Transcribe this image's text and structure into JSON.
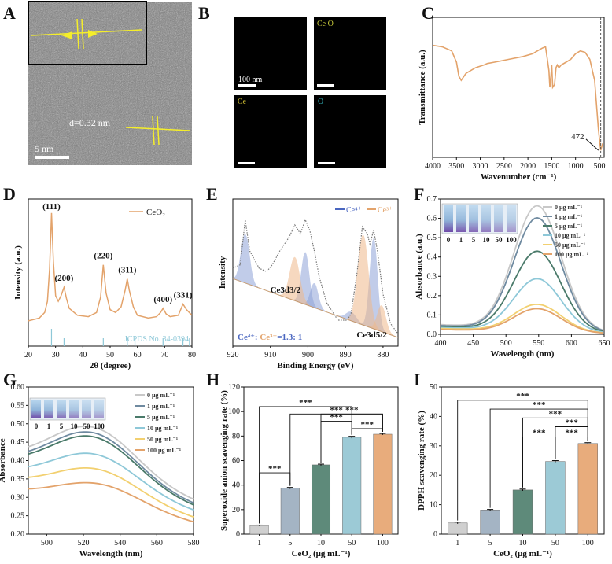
{
  "panels": {
    "A": {
      "label": "A",
      "d_spacing": "d=0.32 nm",
      "scale": "5 nm"
    },
    "B": {
      "label": "B",
      "scale": "100 nm",
      "tiles": [
        {
          "label": "",
          "color": "#dddddd"
        },
        {
          "label": "Ce O",
          "color": "#c6c83a"
        },
        {
          "label": "Ce",
          "color": "#c8b832"
        },
        {
          "label": "O",
          "color": "#39c6cf"
        }
      ]
    },
    "C": {
      "label": "C"
    },
    "D": {
      "label": "D"
    },
    "E": {
      "label": "E"
    },
    "F": {
      "label": "F"
    },
    "G": {
      "label": "G"
    },
    "H": {
      "label": "H"
    },
    "I": {
      "label": "I"
    }
  },
  "chart_data": [
    {
      "id": "C",
      "type": "line",
      "title": "",
      "xlabel": "Wavenumber (cm⁻¹)",
      "ylabel": "Transmittance (a.u.)",
      "xlim": [
        4000,
        400
      ],
      "xticks": [
        4000,
        3500,
        3000,
        2500,
        2000,
        1500,
        1000,
        500
      ],
      "annotation": "472",
      "x": [
        4000,
        3800,
        3600,
        3500,
        3450,
        3400,
        3300,
        3100,
        2920,
        2850,
        2700,
        2400,
        2100,
        1900,
        1800,
        1700,
        1630,
        1600,
        1560,
        1540,
        1520,
        1500,
        1480,
        1440,
        1410,
        1385,
        1350,
        1300,
        1200,
        1100,
        1050,
        1000,
        900,
        800,
        700,
        600,
        520,
        472,
        430
      ],
      "y": [
        0.8,
        0.79,
        0.76,
        0.68,
        0.58,
        0.55,
        0.6,
        0.64,
        0.66,
        0.67,
        0.68,
        0.7,
        0.72,
        0.74,
        0.76,
        0.78,
        0.79,
        0.72,
        0.62,
        0.5,
        0.57,
        0.66,
        0.5,
        0.52,
        0.64,
        0.66,
        0.64,
        0.66,
        0.68,
        0.7,
        0.72,
        0.74,
        0.76,
        0.75,
        0.7,
        0.55,
        0.2,
        0.05,
        0.1
      ],
      "color": "#e3a36b"
    },
    {
      "id": "D",
      "type": "line",
      "title": "",
      "xlabel": "2θ (degree)",
      "ylabel": "Intensity (a.u.)",
      "xlim": [
        20,
        80
      ],
      "xticks": [
        20,
        30,
        40,
        50,
        60,
        70,
        80
      ],
      "legend": "CeO₂",
      "reference": "JCPDS No. 34-0394",
      "peak_labels": [
        {
          "x": 28.5,
          "text": "(111)"
        },
        {
          "x": 33.1,
          "text": "(200)"
        },
        {
          "x": 47.5,
          "text": "(220)"
        },
        {
          "x": 56.3,
          "text": "(311)"
        },
        {
          "x": 69.4,
          "text": "(400)"
        },
        {
          "x": 76.7,
          "text": "(331)"
        }
      ],
      "reference_lines": [
        28.5,
        33.1,
        47.5,
        56.3,
        59.1,
        69.4,
        76.7,
        79.1
      ],
      "x": [
        20,
        22,
        24,
        26,
        27,
        27.8,
        28.5,
        29.2,
        30,
        31,
        32,
        33.1,
        34,
        35,
        38,
        42,
        45,
        46.5,
        47.5,
        48.5,
        50,
        52,
        54,
        55.5,
        56.3,
        57,
        58.5,
        60,
        64,
        67,
        68.5,
        69.4,
        70.5,
        72,
        75,
        76.7,
        78,
        80
      ],
      "y": [
        0.18,
        0.19,
        0.2,
        0.24,
        0.32,
        0.55,
        0.95,
        0.6,
        0.36,
        0.32,
        0.36,
        0.42,
        0.34,
        0.27,
        0.22,
        0.21,
        0.24,
        0.35,
        0.58,
        0.38,
        0.26,
        0.24,
        0.28,
        0.4,
        0.48,
        0.4,
        0.28,
        0.22,
        0.2,
        0.21,
        0.24,
        0.27,
        0.23,
        0.21,
        0.22,
        0.3,
        0.26,
        0.22
      ],
      "color": "#e3a36b"
    },
    {
      "id": "E",
      "type": "line",
      "title": "",
      "xlabel": "Binding Energy (eV)",
      "ylabel": "Intensity",
      "xlim": [
        920,
        876
      ],
      "xticks": [
        920,
        910,
        900,
        890,
        880
      ],
      "legend": [
        "Ce⁴⁺",
        "Ce³⁺"
      ],
      "peak_labels": [
        "Ce3d3/2",
        "Ce3d5/2"
      ],
      "ratio_text": [
        "Ce⁴⁺: ",
        "Ce³⁺",
        "=1.3: 1"
      ],
      "x": [
        920,
        918,
        916.7,
        915.5,
        913,
        911,
        909.5,
        907.5,
        905,
        903.5,
        902,
        900.7,
        899.5,
        898.3,
        897,
        895,
        892,
        889.5,
        888.5,
        887,
        885.5,
        884.2,
        883.5,
        882.5,
        881.5,
        880,
        878,
        876
      ],
      "y": [
        0.6,
        0.62,
        0.88,
        0.7,
        0.6,
        0.58,
        0.62,
        0.7,
        0.78,
        0.85,
        0.8,
        0.88,
        0.82,
        0.7,
        0.55,
        0.4,
        0.3,
        0.3,
        0.34,
        0.56,
        0.84,
        0.8,
        0.74,
        0.82,
        0.7,
        0.45,
        0.28,
        0.22
      ],
      "color": "#777777"
    },
    {
      "id": "F",
      "type": "line",
      "title": "",
      "xlabel": "Wavelength (nm)",
      "ylabel": "Absorbance (a.u.)",
      "xlim": [
        400,
        650
      ],
      "ylim": [
        0,
        0.7
      ],
      "xticks": [
        400,
        450,
        500,
        550,
        600,
        650
      ],
      "yticks": [
        0.0,
        0.1,
        0.2,
        0.3,
        0.4,
        0.5,
        0.6,
        0.7
      ],
      "inset_labels": [
        "0",
        "1",
        "5",
        "10",
        "50",
        "100"
      ],
      "series": [
        {
          "name": "0 μg mL⁻¹",
          "peak": 0.64,
          "base": 0.05,
          "color": "#c8c8c8"
        },
        {
          "name": "1 μg mL⁻¹",
          "peak": 0.58,
          "base": 0.045,
          "color": "#6f8aa0"
        },
        {
          "name": "5 μg mL⁻¹",
          "peak": 0.41,
          "base": 0.04,
          "color": "#4a7a6a"
        },
        {
          "name": "10 μg mL⁻¹",
          "peak": 0.27,
          "base": 0.035,
          "color": "#8ec8d8"
        },
        {
          "name": "50 μg mL⁻¹",
          "peak": 0.14,
          "base": 0.03,
          "color": "#f2d070"
        },
        {
          "name": "100 μg mL⁻¹",
          "peak": 0.12,
          "base": 0.025,
          "color": "#e3a36b"
        }
      ]
    },
    {
      "id": "G",
      "type": "line",
      "title": "",
      "xlabel": "Wavelength (nm)",
      "ylabel": "Absorbance",
      "xlim": [
        490,
        580
      ],
      "ylim": [
        0.2,
        0.6
      ],
      "xticks": [
        500,
        520,
        540,
        560,
        580
      ],
      "yticks": [
        0.2,
        0.25,
        0.3,
        0.35,
        0.4,
        0.45,
        0.5,
        0.55,
        0.6
      ],
      "inset_labels": [
        "0",
        "1",
        "5",
        "10",
        "50",
        "100"
      ],
      "series": [
        {
          "name": "0 μg mL⁻¹",
          "peak": 0.493,
          "end": 0.285,
          "start": 0.395,
          "color": "#c8c8c8"
        },
        {
          "name": "1 μg mL⁻¹",
          "peak": 0.478,
          "end": 0.275,
          "start": 0.385,
          "color": "#6f8aa0"
        },
        {
          "name": "5 μg mL⁻¹",
          "peak": 0.467,
          "end": 0.27,
          "start": 0.38,
          "color": "#4a7a6a"
        },
        {
          "name": "10 μg mL⁻¹",
          "peak": 0.42,
          "end": 0.258,
          "start": 0.355,
          "color": "#8ec8d8"
        },
        {
          "name": "50 μg mL⁻¹",
          "peak": 0.38,
          "end": 0.24,
          "start": 0.335,
          "color": "#f2d070"
        },
        {
          "name": "100 μg mL⁻¹",
          "peak": 0.34,
          "end": 0.228,
          "start": 0.31,
          "color": "#e3a36b"
        }
      ]
    },
    {
      "id": "H",
      "type": "bar",
      "title": "",
      "xlabel": "CeO₂ (μg mL⁻¹)",
      "ylabel": "Superoxide anion scavenging rate (%)",
      "categories": [
        "1",
        "5",
        "10",
        "50",
        "100"
      ],
      "values": [
        7,
        37.5,
        56.5,
        79,
        81.5
      ],
      "errors": [
        0.4,
        0.6,
        0.6,
        0.8,
        0.6
      ],
      "ylim": [
        0,
        120
      ],
      "yticks": [
        0,
        20,
        40,
        60,
        80,
        100,
        120
      ],
      "colors": [
        "#d0d0d0",
        "#a4b4c4",
        "#5e8a7a",
        "#9ccad6",
        "#e8ac7c"
      ],
      "significance": [
        {
          "from": 0,
          "to": 1,
          "label": "***",
          "level": 50
        },
        {
          "from": 0,
          "to": 3,
          "label": "***",
          "level": 104
        },
        {
          "from": 1,
          "to": 4,
          "label": "***",
          "level": 98
        },
        {
          "from": 2,
          "to": 3,
          "label": "***",
          "level": 92
        },
        {
          "from": 2,
          "to": 4,
          "label": "***",
          "level": 98
        },
        {
          "from": 3,
          "to": 4,
          "label": "***",
          "level": 86
        }
      ]
    },
    {
      "id": "I",
      "type": "bar",
      "title": "",
      "xlabel": "CeO₂ (μg mL⁻¹)",
      "ylabel": "DPPH scavenging rate (%)",
      "categories": [
        "1",
        "5",
        "10",
        "50",
        "100"
      ],
      "values": [
        3.8,
        8.2,
        15,
        24.7,
        30.8
      ],
      "errors": [
        0.3,
        0.2,
        0.3,
        0.3,
        0.3
      ],
      "ylim": [
        0,
        50
      ],
      "yticks": [
        0,
        10,
        20,
        30,
        40,
        50
      ],
      "colors": [
        "#d0d0d0",
        "#a4b4c4",
        "#5e8a7a",
        "#9ccad6",
        "#e8ac7c"
      ],
      "significance": [
        {
          "from": 0,
          "to": 4,
          "label": "***",
          "level": 45.5
        },
        {
          "from": 1,
          "to": 4,
          "label": "***",
          "level": 42.5
        },
        {
          "from": 2,
          "to": 4,
          "label": "***",
          "level": 39.5
        },
        {
          "from": 3,
          "to": 4,
          "label": "***",
          "level": 36.5
        },
        {
          "from": 2,
          "to": 3,
          "label": "***",
          "level": 33
        },
        {
          "from": 3,
          "to": 4,
          "label": "***",
          "level": 33
        }
      ]
    }
  ]
}
